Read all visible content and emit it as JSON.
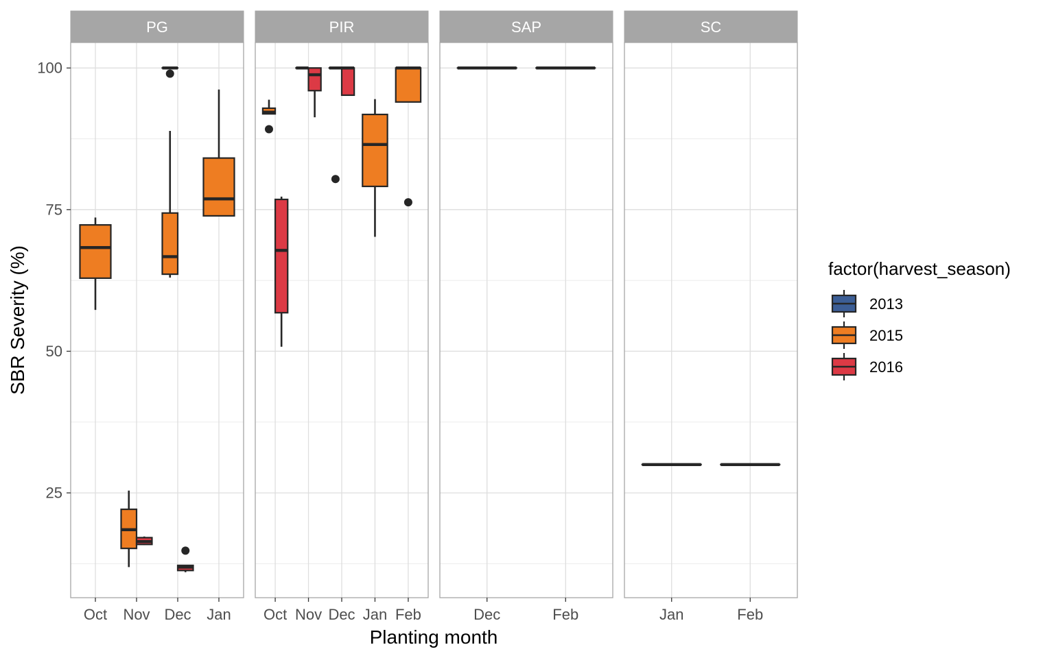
{
  "chart_data": {
    "type": "boxplot",
    "xlabel": "Planting month",
    "ylabel": "SBR Severity (%)",
    "y_ticks": [
      25,
      50,
      75,
      100
    ],
    "ylim": [
      6.5,
      104.5
    ],
    "grid": true,
    "legend": {
      "title": "factor(harvest_season)",
      "placement": "right",
      "entries": [
        {
          "name": "2013",
          "color": "#3C5E96"
        },
        {
          "name": "2015",
          "color": "#EE7D22"
        },
        {
          "name": "2016",
          "color": "#DC3A45"
        }
      ]
    },
    "panels": [
      {
        "label": "PG",
        "categories": [
          "Oct",
          "Nov",
          "Dec",
          "Jan"
        ],
        "boxes": [
          {
            "category": "Oct",
            "season": "2015",
            "slot": 0,
            "n_slots": 1,
            "whisker_low": 57.3,
            "q1": 62.9,
            "median": 68.3,
            "q3": 72.3,
            "whisker_high": 73.6,
            "outliers": []
          },
          {
            "category": "Nov",
            "season": "2015",
            "slot": 0,
            "n_slots": 2,
            "whisker_low": 11.9,
            "q1": 15.2,
            "median": 18.5,
            "q3": 22.1,
            "whisker_high": 25.4,
            "outliers": []
          },
          {
            "category": "Nov",
            "season": "2016",
            "slot": 1,
            "n_slots": 2,
            "whisker_low": 15.8,
            "q1": 15.9,
            "median": 16.4,
            "q3": 17.1,
            "whisker_high": 17.3,
            "outliers": []
          },
          {
            "category": "Dec",
            "season": "2015",
            "slot": 0,
            "n_slots": 2,
            "whisker_low": 63.0,
            "q1": 63.6,
            "median": 66.7,
            "q3": 74.4,
            "whisker_high": 88.9,
            "outliers": []
          },
          {
            "category": "Dec",
            "season": "2016",
            "slot": 1,
            "n_slots": 2,
            "whisker_low": 11.0,
            "q1": 11.3,
            "median": 11.9,
            "q3": 12.2,
            "whisker_high": 12.3,
            "outliers": [
              14.8
            ]
          },
          {
            "category": "Jan",
            "season": "2015",
            "slot": 0,
            "n_slots": 1,
            "whisker_low": 73.9,
            "q1": 73.9,
            "median": 76.9,
            "q3": 84.1,
            "whisker_high": 96.2,
            "outliers": []
          }
        ],
        "extra_dec_2015_top": {
          "category": "Dec",
          "season": "2015",
          "slot": 0,
          "n_slots": 2,
          "whisker_low": 100,
          "q1": 100,
          "median": 100,
          "q3": 100,
          "whisker_high": 100,
          "outliers": [
            99.0
          ]
        }
      },
      {
        "label": "PIR",
        "categories": [
          "Oct",
          "Nov",
          "Dec",
          "Jan",
          "Feb"
        ],
        "boxes": [
          {
            "category": "Oct",
            "season": "2015",
            "slot": 0,
            "n_slots": 2,
            "whisker_low": 91.9,
            "q1": 91.9,
            "median": 92.2,
            "q3": 92.9,
            "whisker_high": 94.4,
            "outliers": [
              89.2
            ]
          },
          {
            "category": "Oct",
            "season": "2016",
            "slot": 1,
            "n_slots": 2,
            "whisker_low": 50.8,
            "q1": 56.8,
            "median": 67.8,
            "q3": 76.8,
            "whisker_high": 77.3,
            "outliers": []
          },
          {
            "category": "Nov",
            "season": "2015",
            "slot": 0,
            "n_slots": 2,
            "whisker_low": 100,
            "q1": 100,
            "median": 100,
            "q3": 100,
            "whisker_high": 100,
            "outliers": []
          },
          {
            "category": "Nov",
            "season": "2016",
            "slot": 1,
            "n_slots": 2,
            "whisker_low": 91.3,
            "q1": 96.0,
            "median": 98.8,
            "q3": 100,
            "whisker_high": 100,
            "outliers": []
          },
          {
            "category": "Dec",
            "season": "2015",
            "slot": 0,
            "n_slots": 2,
            "whisker_low": 100,
            "q1": 100,
            "median": 100,
            "q3": 100,
            "whisker_high": 100,
            "outliers": [
              80.4
            ]
          },
          {
            "category": "Dec",
            "season": "2016",
            "slot": 1,
            "n_slots": 2,
            "whisker_low": 95.2,
            "q1": 95.2,
            "median": 100,
            "q3": 100,
            "whisker_high": 100,
            "outliers": []
          },
          {
            "category": "Jan",
            "season": "2015",
            "slot": 0,
            "n_slots": 1,
            "whisker_low": 70.2,
            "q1": 79.1,
            "median": 86.5,
            "q3": 91.8,
            "whisker_high": 94.5,
            "outliers": []
          },
          {
            "category": "Feb",
            "season": "2015",
            "slot": 0,
            "n_slots": 1,
            "whisker_low": 94.0,
            "q1": 94.0,
            "median": 100,
            "q3": 100,
            "whisker_high": 100,
            "outliers": [
              76.3
            ]
          }
        ]
      },
      {
        "label": "SAP",
        "categories": [
          "Dec",
          "Feb"
        ],
        "boxes": [
          {
            "category": "Dec",
            "season": "2013",
            "slot": 0,
            "n_slots": 1,
            "whisker_low": 100,
            "q1": 100,
            "median": 100,
            "q3": 100,
            "whisker_high": 100,
            "outliers": []
          },
          {
            "category": "Feb",
            "season": "2013",
            "slot": 0,
            "n_slots": 1,
            "whisker_low": 100,
            "q1": 100,
            "median": 100,
            "q3": 100,
            "whisker_high": 100,
            "outliers": []
          }
        ]
      },
      {
        "label": "SC",
        "categories": [
          "Jan",
          "Feb"
        ],
        "boxes": [
          {
            "category": "Jan",
            "season": "2013",
            "slot": 0,
            "n_slots": 1,
            "whisker_low": 30,
            "q1": 30,
            "median": 30,
            "q3": 30,
            "whisker_high": 30,
            "outliers": []
          },
          {
            "category": "Feb",
            "season": "2013",
            "slot": 0,
            "n_slots": 1,
            "whisker_low": 30,
            "q1": 30,
            "median": 30,
            "q3": 30,
            "whisker_high": 30,
            "outliers": []
          }
        ]
      }
    ]
  }
}
